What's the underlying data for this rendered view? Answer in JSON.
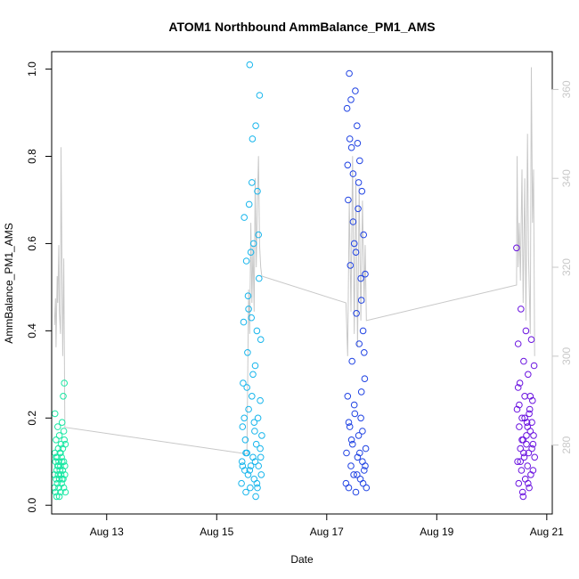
{
  "chart_data": {
    "type": "scatter",
    "title": "ATOM1 Northbound AmmBalance_PM1_AMS",
    "xlabel": "Date",
    "ylabel": "AmmBalance_PM1_AMS",
    "x_unit": "days of August",
    "xlim": [
      12.0,
      21.1
    ],
    "ylim": [
      -0.02,
      1.04
    ],
    "y2lim": [
      264.5,
      368.5
    ],
    "x_ticks": [
      {
        "value": 13,
        "label": "Aug 13"
      },
      {
        "value": 15,
        "label": "Aug 15"
      },
      {
        "value": 17,
        "label": "Aug 17"
      },
      {
        "value": 19,
        "label": "Aug 19"
      },
      {
        "value": 21,
        "label": "Aug 21"
      }
    ],
    "y_ticks": [
      {
        "value": 0.0,
        "label": "0.0"
      },
      {
        "value": 0.2,
        "label": "0.2"
      },
      {
        "value": 0.4,
        "label": "0.4"
      },
      {
        "value": 0.6,
        "label": "0.6"
      },
      {
        "value": 0.8,
        "label": "0.8"
      },
      {
        "value": 1.0,
        "label": "1.0"
      }
    ],
    "y2_ticks": [
      {
        "value": 280,
        "label": "280"
      },
      {
        "value": 300,
        "label": "300"
      },
      {
        "value": 320,
        "label": "320"
      },
      {
        "value": 340,
        "label": "340"
      },
      {
        "value": 360,
        "label": "360"
      }
    ],
    "grid": false,
    "colors": {
      "series_1": "#19e8a3",
      "series_2": "#16b5ec",
      "series_3": "#1f42e3",
      "series_4": "#6a12e0",
      "secondary": "#c8c8c8"
    },
    "series": [
      {
        "x_range": [
          12.05,
          12.25
        ],
        "points": [
          [
            12.05,
            0.07
          ],
          [
            12.05,
            0.04
          ],
          [
            12.06,
            0.12
          ],
          [
            12.06,
            0.21
          ],
          [
            12.07,
            0.03
          ],
          [
            12.07,
            0.1
          ],
          [
            12.08,
            0.06
          ],
          [
            12.08,
            0.15
          ],
          [
            12.09,
            0.08
          ],
          [
            12.09,
            0.02
          ],
          [
            12.1,
            0.11
          ],
          [
            12.1,
            0.05
          ],
          [
            12.11,
            0.18
          ],
          [
            12.11,
            0.09
          ],
          [
            12.12,
            0.13
          ],
          [
            12.12,
            0.07
          ],
          [
            12.13,
            0.04
          ],
          [
            12.13,
            0.1
          ],
          [
            12.14,
            0.16
          ],
          [
            12.14,
            0.06
          ],
          [
            12.15,
            0.08
          ],
          [
            12.15,
            0.12
          ],
          [
            12.16,
            0.03
          ],
          [
            12.16,
            0.09
          ],
          [
            12.17,
            0.14
          ],
          [
            12.17,
            0.07
          ],
          [
            12.18,
            0.11
          ],
          [
            12.18,
            0.05
          ],
          [
            12.19,
            0.1
          ],
          [
            12.19,
            0.19
          ],
          [
            12.2,
            0.08
          ],
          [
            12.2,
            0.13
          ],
          [
            12.21,
            0.06
          ],
          [
            12.21,
            0.25
          ],
          [
            12.22,
            0.04
          ],
          [
            12.22,
            0.1
          ],
          [
            12.23,
            0.28
          ],
          [
            12.23,
            0.15
          ],
          [
            12.24,
            0.09
          ],
          [
            12.24,
            0.07
          ],
          [
            12.25,
            0.14
          ],
          [
            12.25,
            0.03
          ],
          [
            12.12,
            0.09
          ],
          [
            12.16,
            0.12
          ],
          [
            12.19,
            0.06
          ],
          [
            12.22,
            0.17
          ],
          [
            12.08,
            0.11
          ],
          [
            12.14,
            0.02
          ]
        ]
      },
      {
        "x_range": [
          15.45,
          15.82
        ],
        "points": [
          [
            15.45,
            0.05
          ],
          [
            15.46,
            0.1
          ],
          [
            15.47,
            0.18
          ],
          [
            15.48,
            0.28
          ],
          [
            15.49,
            0.42
          ],
          [
            15.5,
            0.66
          ],
          [
            15.51,
            0.08
          ],
          [
            15.52,
            0.15
          ],
          [
            15.53,
            0.03
          ],
          [
            15.54,
            0.56
          ],
          [
            15.55,
            0.12
          ],
          [
            15.56,
            0.35
          ],
          [
            15.57,
            0.07
          ],
          [
            15.58,
            0.22
          ],
          [
            15.59,
            0.69
          ],
          [
            15.6,
            1.01
          ],
          [
            15.61,
            0.04
          ],
          [
            15.62,
            0.09
          ],
          [
            15.63,
            0.43
          ],
          [
            15.64,
            0.25
          ],
          [
            15.65,
            0.84
          ],
          [
            15.66,
            0.11
          ],
          [
            15.67,
            0.6
          ],
          [
            15.68,
            0.06
          ],
          [
            15.69,
            0.17
          ],
          [
            15.7,
            0.32
          ],
          [
            15.71,
            0.87
          ],
          [
            15.72,
            0.14
          ],
          [
            15.73,
            0.05
          ],
          [
            15.74,
            0.72
          ],
          [
            15.75,
            0.2
          ],
          [
            15.76,
            0.09
          ],
          [
            15.77,
            0.52
          ],
          [
            15.78,
            0.94
          ],
          [
            15.79,
            0.13
          ],
          [
            15.8,
            0.38
          ],
          [
            15.81,
            0.07
          ],
          [
            15.82,
            0.16
          ],
          [
            15.5,
            0.2
          ],
          [
            15.55,
            0.27
          ],
          [
            15.58,
            0.45
          ],
          [
            15.62,
            0.58
          ],
          [
            15.66,
            0.3
          ],
          [
            15.7,
            0.1
          ],
          [
            15.73,
            0.4
          ],
          [
            15.76,
            0.62
          ],
          [
            15.79,
            0.24
          ],
          [
            15.53,
            0.12
          ],
          [
            15.6,
            0.08
          ],
          [
            15.68,
            0.19
          ],
          [
            15.74,
            0.04
          ],
          [
            15.8,
            0.11
          ],
          [
            15.64,
            0.74
          ],
          [
            15.57,
            0.48
          ],
          [
            15.71,
            0.02
          ],
          [
            15.47,
            0.09
          ]
        ]
      },
      {
        "x_range": [
          17.35,
          17.72
        ],
        "points": [
          [
            17.35,
            0.05
          ],
          [
            17.36,
            0.12
          ],
          [
            17.37,
            0.91
          ],
          [
            17.38,
            0.25
          ],
          [
            17.39,
            0.7
          ],
          [
            17.4,
            0.04
          ],
          [
            17.41,
            0.99
          ],
          [
            17.42,
            0.18
          ],
          [
            17.43,
            0.55
          ],
          [
            17.44,
            0.09
          ],
          [
            17.45,
            0.82
          ],
          [
            17.46,
            0.33
          ],
          [
            17.47,
            0.14
          ],
          [
            17.48,
            0.76
          ],
          [
            17.49,
            0.07
          ],
          [
            17.5,
            0.6
          ],
          [
            17.51,
            0.21
          ],
          [
            17.52,
            0.95
          ],
          [
            17.53,
            0.03
          ],
          [
            17.54,
            0.44
          ],
          [
            17.55,
            0.87
          ],
          [
            17.56,
            0.11
          ],
          [
            17.57,
            0.68
          ],
          [
            17.58,
            0.16
          ],
          [
            17.59,
            0.37
          ],
          [
            17.6,
            0.79
          ],
          [
            17.61,
            0.06
          ],
          [
            17.62,
            0.52
          ],
          [
            17.63,
            0.26
          ],
          [
            17.64,
            0.72
          ],
          [
            17.65,
            0.1
          ],
          [
            17.66,
            0.4
          ],
          [
            17.67,
            0.62
          ],
          [
            17.68,
            0.08
          ],
          [
            17.69,
            0.29
          ],
          [
            17.7,
            0.53
          ],
          [
            17.71,
            0.13
          ],
          [
            17.72,
            0.04
          ],
          [
            17.4,
            0.19
          ],
          [
            17.45,
            0.15
          ],
          [
            17.5,
            0.23
          ],
          [
            17.55,
            0.07
          ],
          [
            17.6,
            0.12
          ],
          [
            17.65,
            0.17
          ],
          [
            17.7,
            0.09
          ],
          [
            17.42,
            0.84
          ],
          [
            17.48,
            0.65
          ],
          [
            17.53,
            0.58
          ],
          [
            17.58,
            0.74
          ],
          [
            17.63,
            0.47
          ],
          [
            17.68,
            0.35
          ],
          [
            17.38,
            0.78
          ],
          [
            17.44,
            0.93
          ],
          [
            17.56,
            0.83
          ],
          [
            17.62,
            0.2
          ],
          [
            17.66,
            0.05
          ]
        ]
      },
      {
        "x_range": [
          20.45,
          20.78
        ],
        "points": [
          [
            20.45,
            0.59
          ],
          [
            20.46,
            0.22
          ],
          [
            20.47,
            0.1
          ],
          [
            20.48,
            0.37
          ],
          [
            20.49,
            0.05
          ],
          [
            20.5,
            0.18
          ],
          [
            20.51,
            0.28
          ],
          [
            20.52,
            0.13
          ],
          [
            20.53,
            0.45
          ],
          [
            20.54,
            0.08
          ],
          [
            20.55,
            0.2
          ],
          [
            20.56,
            0.03
          ],
          [
            20.57,
            0.15
          ],
          [
            20.58,
            0.33
          ],
          [
            20.59,
            0.11
          ],
          [
            20.6,
            0.25
          ],
          [
            20.61,
            0.06
          ],
          [
            20.62,
            0.4
          ],
          [
            20.63,
            0.14
          ],
          [
            20.64,
            0.19
          ],
          [
            20.65,
            0.09
          ],
          [
            20.66,
            0.3
          ],
          [
            20.67,
            0.12
          ],
          [
            20.68,
            0.04
          ],
          [
            20.69,
            0.22
          ],
          [
            20.7,
            0.17
          ],
          [
            20.71,
            0.07
          ],
          [
            20.72,
            0.38
          ],
          [
            20.73,
            0.13
          ],
          [
            20.74,
            0.24
          ],
          [
            20.75,
            0.08
          ],
          [
            20.76,
            0.16
          ],
          [
            20.77,
            0.32
          ],
          [
            20.78,
            0.11
          ],
          [
            20.5,
            0.23
          ],
          [
            20.55,
            0.15
          ],
          [
            20.6,
            0.2
          ],
          [
            20.65,
            0.18
          ],
          [
            20.7,
            0.25
          ],
          [
            20.75,
            0.14
          ],
          [
            20.52,
            0.1
          ],
          [
            20.58,
            0.12
          ],
          [
            20.63,
            0.16
          ],
          [
            20.68,
            0.21
          ],
          [
            20.73,
            0.19
          ],
          [
            20.48,
            0.27
          ],
          [
            20.57,
            0.02
          ],
          [
            20.66,
            0.05
          ]
        ]
      }
    ],
    "secondary_trace": {
      "points": [
        [
          12.05,
          307
        ],
        [
          12.07,
          313
        ],
        [
          12.08,
          302
        ],
        [
          12.1,
          318
        ],
        [
          12.11,
          312
        ],
        [
          12.13,
          325
        ],
        [
          12.14,
          310
        ],
        [
          12.16,
          305
        ],
        [
          12.17,
          347
        ],
        [
          12.19,
          318
        ],
        [
          12.2,
          300
        ],
        [
          12.22,
          322
        ],
        [
          12.24,
          284
        ],
        [
          15.55,
          278
        ],
        [
          15.58,
          315
        ],
        [
          15.6,
          305
        ],
        [
          15.62,
          330
        ],
        [
          15.64,
          312
        ],
        [
          15.66,
          325
        ],
        [
          15.68,
          310
        ],
        [
          15.7,
          340
        ],
        [
          15.72,
          320
        ],
        [
          15.74,
          335
        ],
        [
          15.76,
          345
        ],
        [
          15.78,
          325
        ],
        [
          15.8,
          320
        ],
        [
          15.82,
          318
        ],
        [
          17.35,
          312
        ],
        [
          17.38,
          300
        ],
        [
          17.41,
          335
        ],
        [
          17.44,
          310
        ],
        [
          17.47,
          345
        ],
        [
          17.5,
          305
        ],
        [
          17.53,
          340
        ],
        [
          17.56,
          302
        ],
        [
          17.59,
          338
        ],
        [
          17.62,
          308
        ],
        [
          17.65,
          335
        ],
        [
          17.68,
          312
        ],
        [
          17.7,
          325
        ],
        [
          17.72,
          308
        ],
        [
          20.45,
          316
        ],
        [
          20.46,
          345
        ],
        [
          20.48,
          320
        ],
        [
          20.5,
          330
        ],
        [
          20.52,
          317
        ],
        [
          20.55,
          342
        ],
        [
          20.57,
          312
        ],
        [
          20.6,
          340
        ],
        [
          20.62,
          308
        ],
        [
          20.65,
          350
        ],
        [
          20.67,
          322
        ],
        [
          20.7,
          305
        ],
        [
          20.72,
          365
        ],
        [
          20.74,
          330
        ],
        [
          20.76,
          342
        ],
        [
          20.78,
          300
        ]
      ]
    }
  }
}
